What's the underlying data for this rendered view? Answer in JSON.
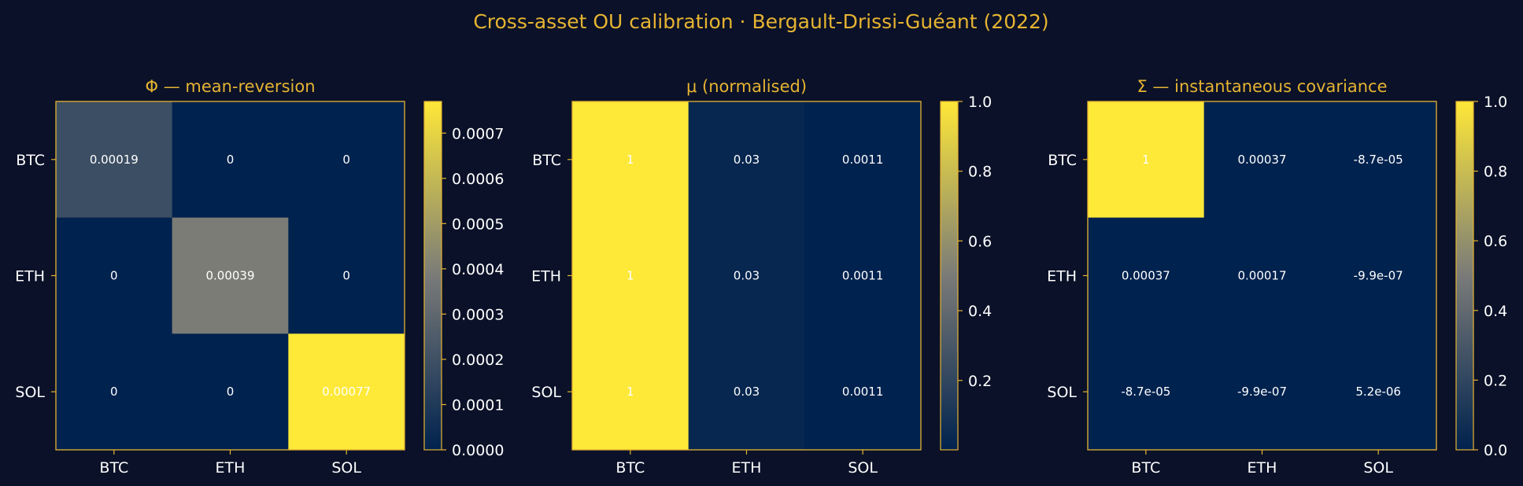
{
  "figure": {
    "suptitle": "Cross-asset OU calibration · Bergault-Drissi-Guéant (2022)"
  },
  "colors": {
    "background": "#0a1128",
    "accent": "#e6b432",
    "text": "#ffffff",
    "cmap": [
      "#00224e",
      "#7a7b78",
      "#fee838"
    ]
  },
  "chart_data": [
    {
      "type": "heatmap",
      "title": "Φ — mean-reversion",
      "x_categories": [
        "BTC",
        "ETH",
        "SOL"
      ],
      "y_categories": [
        "BTC",
        "ETH",
        "SOL"
      ],
      "values": [
        [
          0.00019,
          0,
          0
        ],
        [
          0,
          0.00039,
          0
        ],
        [
          0,
          0,
          0.00077
        ]
      ],
      "labels": [
        [
          "0.00019",
          "0",
          "0"
        ],
        [
          "0",
          "0.00039",
          "0"
        ],
        [
          "0",
          "0",
          "0.00077"
        ]
      ],
      "colorbar": {
        "min": 0,
        "max": 0.00077,
        "ticks": [
          0,
          0.0001,
          0.0002,
          0.0003,
          0.0004,
          0.0005,
          0.0006,
          0.0007
        ],
        "tick_labels": [
          "0.0000",
          "0.0001",
          "0.0002",
          "0.0003",
          "0.0004",
          "0.0005",
          "0.0006",
          "0.0007"
        ]
      }
    },
    {
      "type": "heatmap",
      "title": "μ (normalised)",
      "x_categories": [
        "BTC",
        "ETH",
        "SOL"
      ],
      "y_categories": [
        "BTC",
        "ETH",
        "SOL"
      ],
      "values": [
        [
          1,
          0.03,
          0.0011
        ],
        [
          1,
          0.03,
          0.0011
        ],
        [
          1,
          0.03,
          0.0011
        ]
      ],
      "labels": [
        [
          "1",
          "0.03",
          "0.0011"
        ],
        [
          "1",
          "0.03",
          "0.0011"
        ],
        [
          "1",
          "0.03",
          "0.0011"
        ]
      ],
      "colorbar": {
        "min": 0.0011,
        "max": 1,
        "ticks": [
          0.2,
          0.4,
          0.6,
          0.8,
          1.0
        ],
        "tick_labels": [
          "0.2",
          "0.4",
          "0.6",
          "0.8",
          "1.0"
        ]
      }
    },
    {
      "type": "heatmap",
      "title": "Σ — instantaneous covariance",
      "x_categories": [
        "BTC",
        "ETH",
        "SOL"
      ],
      "y_categories": [
        "BTC",
        "ETH",
        "SOL"
      ],
      "values": [
        [
          1,
          0.00037,
          -8.7e-05
        ],
        [
          0.00037,
          0.00017,
          -9.9e-07
        ],
        [
          -8.7e-05,
          -9.9e-07,
          5.2e-06
        ]
      ],
      "labels": [
        [
          "1",
          "0.00037",
          "-8.7e-05"
        ],
        [
          "0.00037",
          "0.00017",
          "-9.9e-07"
        ],
        [
          "-8.7e-05",
          "-9.9e-07",
          "5.2e-06"
        ]
      ],
      "colorbar": {
        "min": -8.7e-05,
        "max": 1,
        "ticks": [
          0,
          0.2,
          0.4,
          0.6,
          0.8,
          1.0
        ],
        "tick_labels": [
          "0.0",
          "0.2",
          "0.4",
          "0.6",
          "0.8",
          "1.0"
        ]
      }
    }
  ]
}
